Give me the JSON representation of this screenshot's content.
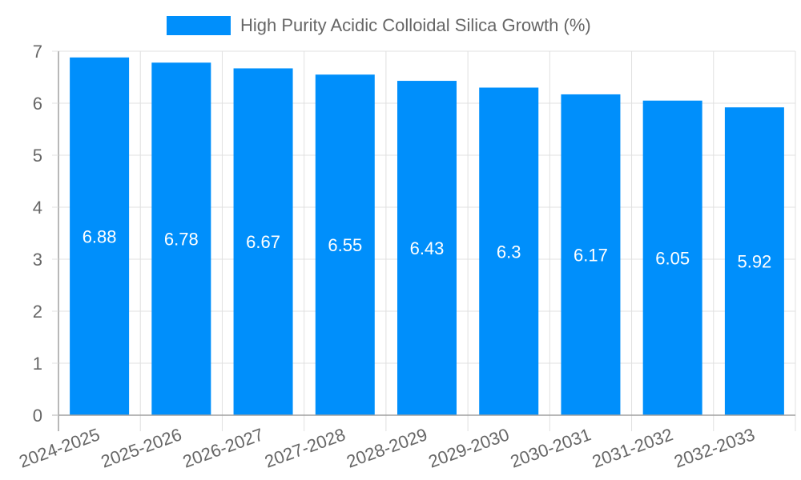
{
  "chart_data": {
    "type": "bar",
    "title": "",
    "categories": [
      "2024-2025",
      "2025-2026",
      "2026-2027",
      "2027-2028",
      "2028-2029",
      "2029-2030",
      "2030-2031",
      "2031-2032",
      "2032-2033"
    ],
    "series": [
      {
        "name": "High Purity Acidic Colloidal Silica Growth (%)",
        "values": [
          6.88,
          6.78,
          6.67,
          6.55,
          6.43,
          6.3,
          6.17,
          6.05,
          5.92
        ],
        "color": "#008ffb"
      }
    ],
    "data_labels": [
      "6.88",
      "6.78",
      "6.67",
      "6.55",
      "6.43",
      "6.3",
      "6.17",
      "6.05",
      "5.92"
    ],
    "xlabel": "",
    "ylabel": "",
    "ylim": [
      0,
      7
    ],
    "yticks": [
      "0",
      "1",
      "2",
      "3",
      "4",
      "5",
      "6",
      "7"
    ],
    "grid": true,
    "legend_position": "top"
  },
  "legend": {
    "label": "High Purity Acidic Colloidal Silica Growth (%)",
    "color": "#008ffb"
  },
  "colors": {
    "bar": "#008ffb",
    "grid": "#e0e0e0",
    "axis": "#a0a0a0",
    "text": "#666666",
    "data_label": "#ffffff"
  }
}
